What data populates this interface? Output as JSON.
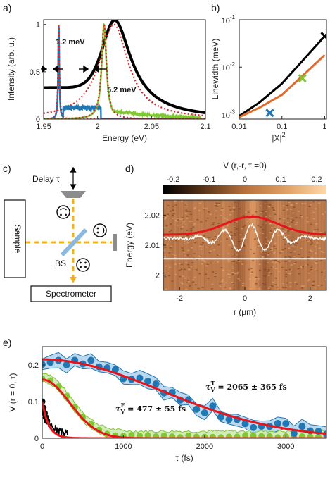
{
  "panels": [
    {
      "label": "a)",
      "chart_data": {
        "type": "line",
        "xlabel": "Energy (eV)",
        "ylabel": "Intensity (arb. u.)",
        "xlim": [
          1.95,
          2.1
        ],
        "ylim": [
          0,
          1.05
        ],
        "xticks": [
          "1.95",
          "2",
          "2.05",
          "2.1"
        ],
        "yticks": [
          "0",
          "0.5",
          "1"
        ],
        "annotations": [
          "1.2 meV",
          "5.2 meV"
        ],
        "series": [
          {
            "color": "#000000",
            "style": "solid-thick",
            "shape": "lorentzian",
            "x0": 2.015,
            "fwhm": 0.035,
            "amp": 1.0,
            "baseline_left": 0.3
          },
          {
            "color": "#d62728",
            "style": "dotted",
            "shape": "lorentzian",
            "x0": 2.015,
            "fwhm": 0.033,
            "amp": 1.0
          },
          {
            "color": "#1f77b4",
            "style": "solid",
            "shape": "lorentzian",
            "x0": 1.964,
            "fwhm": 0.0012,
            "amp": 1.0,
            "plateau": 0.12
          },
          {
            "color": "#d62728",
            "style": "dotted",
            "shape": "lorentzian",
            "x0": 1.964,
            "fwhm": 0.0014,
            "amp": 1.0
          },
          {
            "color": "#7fc832",
            "style": "solid",
            "shape": "lorentzian",
            "x0": 2.006,
            "fwhm": 0.0052,
            "amp": 1.0,
            "tail": 0.1
          },
          {
            "color": "#d62728",
            "style": "dotted",
            "shape": "lorentzian",
            "x0": 2.006,
            "fwhm": 0.0055,
            "amp": 1.0
          }
        ]
      }
    },
    {
      "label": "b)",
      "chart_data": {
        "type": "line",
        "xlabel": "|X|",
        "xlabel_sup": "2",
        "ylabel": "Linewidth (meV)",
        "xscale": "log",
        "yscale": "log",
        "xlim": [
          0.01,
          1.1
        ],
        "ylim": [
          0.0008,
          0.1
        ],
        "xticks": [
          "0.01",
          "0.1",
          "1"
        ],
        "yticks_base": "10",
        "yticks_exp": [
          "-3",
          "-2",
          "-1"
        ],
        "series": [
          {
            "color": "#000000",
            "x": [
              0.01,
              0.03,
              0.1,
              0.3,
              1.0
            ],
            "y": [
              0.00093,
              0.0018,
              0.0045,
              0.0135,
              0.045
            ]
          },
          {
            "color": "#e06b2c",
            "x": [
              0.01,
              0.03,
              0.1,
              0.3,
              1.0
            ],
            "y": [
              0.00088,
              0.0014,
              0.0026,
              0.0065,
              0.018
            ]
          }
        ],
        "markers": [
          {
            "color": "#1f77b4",
            "x": 0.052,
            "y": 0.00108
          },
          {
            "color": "#7fc832",
            "x": 0.3,
            "y": 0.0058
          },
          {
            "color": "#000000",
            "x": 1.0,
            "y": 0.045
          }
        ]
      }
    },
    {
      "label": "c)",
      "labels": {
        "delay": "Delay τ",
        "sample": "Sample",
        "bs": "BS",
        "spectrometer": "Spectrometer"
      }
    },
    {
      "label": "d)",
      "chart_data": {
        "type": "heatmap",
        "title": "V (r,-r, τ =0)",
        "colorbar_ticks": [
          "-0.2",
          "-0.1",
          "0",
          "0.1",
          "0.2"
        ],
        "xlabel": "r (μm)",
        "ylabel": "Energy (eV)",
        "xlim": [
          -2.5,
          2.5
        ],
        "ylim": [
          1.995,
          2.025
        ],
        "xticks": [
          "-2",
          "0",
          "2"
        ],
        "yticks": [
          "2",
          "2.01",
          "2.02"
        ],
        "hline": 2.0055,
        "gaussian": {
          "center": 0.2,
          "sigma": 0.8,
          "base": 2.0135,
          "peak": 2.0195
        }
      }
    },
    {
      "label": "e)",
      "chart_data": {
        "type": "scatter",
        "xlabel": "τ (fs)",
        "ylabel": "V (r = 0, τ)",
        "xlim": [
          0,
          3500
        ],
        "ylim": [
          0,
          0.25
        ],
        "xticks": [
          "0",
          "1000",
          "2000",
          "3000"
        ],
        "yticks": [
          "0",
          "0.1",
          "0.2"
        ],
        "annotations": [
          {
            "tau": "τ",
            "sub": "V",
            "sup": "T",
            "text": " = 2065 ± 365 fs"
          },
          {
            "tau": "τ",
            "sub": "V",
            "sup": "F",
            "text": " = 477 ± 55 fs"
          }
        ],
        "series": [
          {
            "color": "#1f77b4",
            "shape": "decay",
            "amp": 0.215,
            "tau": 2065,
            "power": 2
          },
          {
            "color": "#7fc832",
            "shape": "decay",
            "amp": 0.16,
            "tau": 477,
            "power": 2
          },
          {
            "color": "#000000",
            "shape": "decay",
            "amp": 0.1,
            "tau": 80,
            "power": 1
          }
        ]
      }
    }
  ]
}
